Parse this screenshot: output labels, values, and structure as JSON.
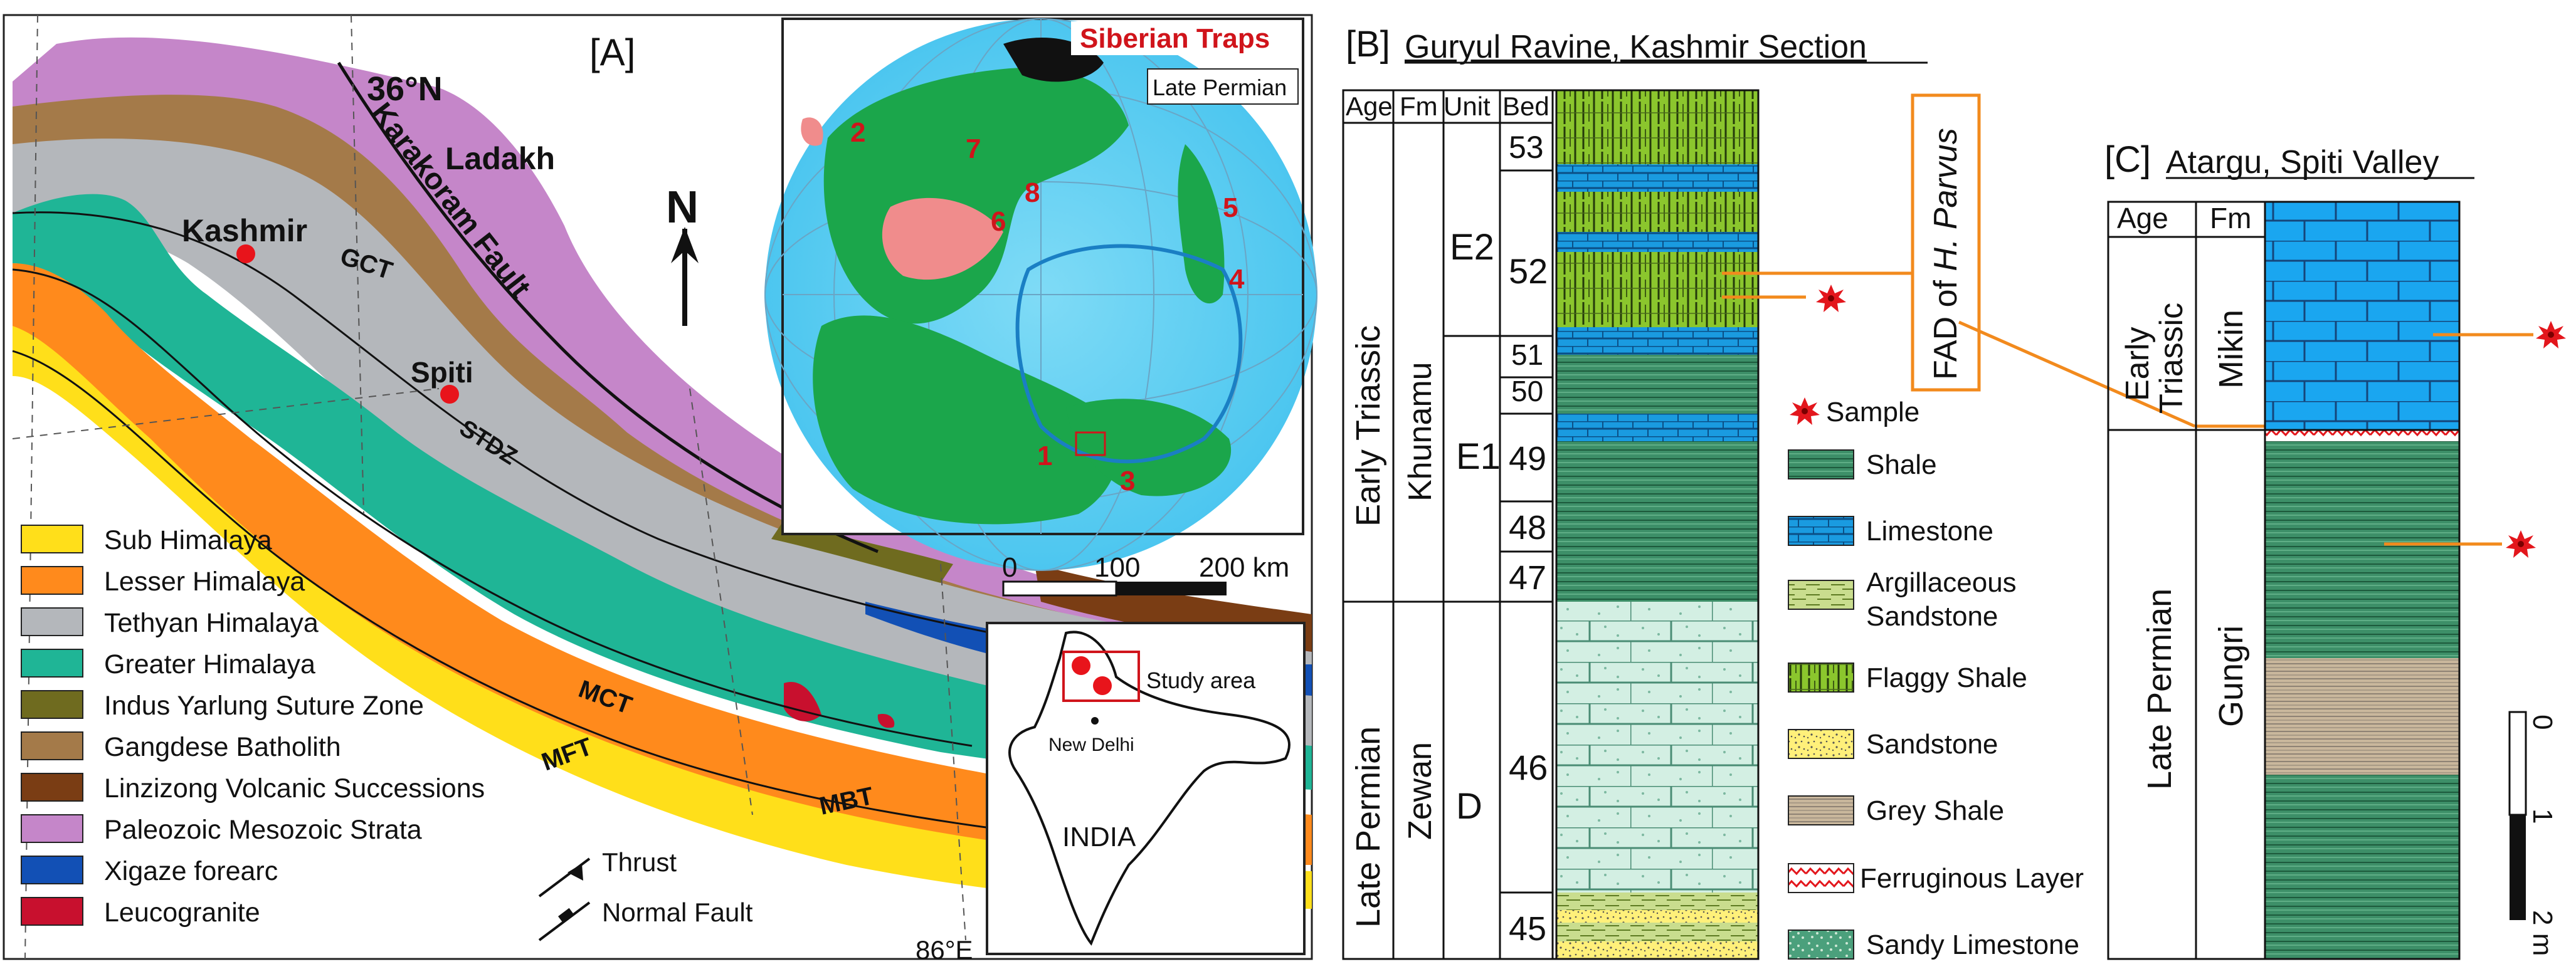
{
  "panel_a": {
    "label": "[A]",
    "lat_label": "36°N",
    "lon_label": "86°E",
    "north": "N",
    "region_labels": {
      "ladakh": "Ladakh",
      "karakoram": "Karakoram Fault",
      "kashmir": "Kashmir",
      "spiti": "Spiti",
      "gct": "GCT",
      "stdz": "STDZ",
      "mct": "MCT",
      "mft": "MFT",
      "mbt": "MBT"
    },
    "legend": [
      {
        "label": "Sub Himalaya",
        "color": "#ffdf1a"
      },
      {
        "label": "Lesser Himalaya",
        "color": "#ff8a1c"
      },
      {
        "label": "Tethyan Himalaya",
        "color": "#b4b7bb"
      },
      {
        "label": "Greater Himalaya",
        "color": "#1fb596"
      },
      {
        "label": "Indus Yarlung Suture Zone",
        "color": "#6f6b1f"
      },
      {
        "label": "Gangdese Batholith",
        "color": "#a47a49"
      },
      {
        "label": "Linzizong Volcanic Successions",
        "color": "#7a3d14"
      },
      {
        "label": "Paleozoic Mesozoic Strata",
        "color": "#c586c9"
      },
      {
        "label": "Xigaze forearc",
        "color": "#1250b5"
      },
      {
        "label": "Leucogranite",
        "color": "#c8102e"
      }
    ],
    "fault_legend": {
      "thrust": "Thrust",
      "normal": "Normal Fault"
    },
    "inset_globe": {
      "title": "Siberian Traps",
      "subtitle": "Late Permian",
      "numbers": [
        "1",
        "2",
        "3",
        "4",
        "5",
        "6",
        "7",
        "8"
      ]
    },
    "scale": {
      "t0": "0",
      "t1": "100",
      "t2": "200 km"
    },
    "india_inset": {
      "study": "Study area",
      "delhi": "New Delhi",
      "country": "INDIA"
    }
  },
  "panel_b": {
    "label": "[B]",
    "title": "Guryul Ravine, Kashmir Section",
    "headers": {
      "age": "Age",
      "fm": "Fm",
      "unit": "Unit",
      "bed": "Bed"
    },
    "ages": {
      "early": "Early Triassic",
      "late": "Late Permian"
    },
    "formations": {
      "khunamu": "Khunamu",
      "zewan": "Zewan"
    },
    "units": {
      "e2": "E2",
      "e1": "E1",
      "d": "D"
    },
    "beds": [
      "53",
      "52",
      "51",
      "50",
      "49",
      "48",
      "47",
      "46",
      "45"
    ],
    "fad_prefix": "FAD of ",
    "fad_species": "H. Parvus"
  },
  "legend_b": [
    {
      "label": "Sample",
      "kind": "sample"
    },
    {
      "label": "Shale",
      "kind": "shale"
    },
    {
      "label": "Limestone",
      "kind": "limestone"
    },
    {
      "label": "Argillaceous Sandstone",
      "line1": "Argillaceous",
      "line2": "Sandstone",
      "kind": "argsand"
    },
    {
      "label": "Flaggy Shale",
      "kind": "flaggy"
    },
    {
      "label": "Sandstone",
      "kind": "sandstone"
    },
    {
      "label": "Grey Shale",
      "kind": "greyshale"
    },
    {
      "label": "Ferruginous Layer",
      "kind": "ferrug"
    },
    {
      "label": "Sandy Limestone",
      "kind": "sandylime"
    }
  ],
  "panel_c": {
    "label": "[C]",
    "title": "Atargu, Spiti Valley",
    "headers": {
      "age": "Age",
      "fm": "Fm"
    },
    "ages": {
      "early": "Early Triassic",
      "early_l1": "Early",
      "early_l2": "Triassic",
      "late": "Late Permian"
    },
    "formations": {
      "mikin": "Mikin",
      "gungri": "Gungri"
    },
    "scale": {
      "t0": "0",
      "t1": "1",
      "t2": "2 m"
    }
  }
}
